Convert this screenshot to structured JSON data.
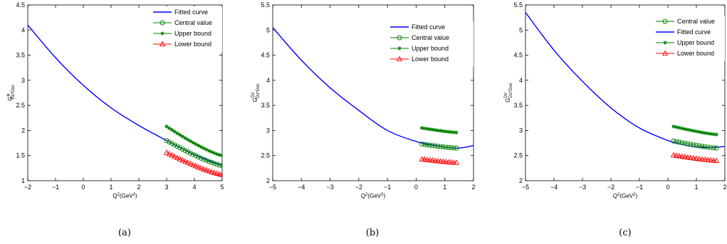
{
  "chart_data": [
    {
      "type": "line",
      "caption": "(a)",
      "xlabel_main": "Q",
      "xlabel_sup": "2",
      "xlabel_rest": "(GeV",
      "xlabel_sup2": "2",
      "xlabel_end": ")",
      "ylabel_main": "G",
      "ylabel_sup": "φ",
      "ylabel_sub": "Ds*Dso",
      "xlim": [
        -2,
        5
      ],
      "ylim": [
        1,
        4.5
      ],
      "xticks": [
        "−2",
        "−1",
        "0",
        "1",
        "2",
        "3",
        "4",
        "5"
      ],
      "yticks": [
        "1",
        "1.5",
        "2",
        "2.5",
        "3",
        "3.5",
        "4",
        "4.5"
      ],
      "legend": [
        "Fitted curve",
        "Central value",
        "Upper bound",
        "Lower bound"
      ],
      "series": [
        {
          "name": "Fitted curve",
          "color": "#0000ff",
          "marker": "none",
          "curve": {
            "x": [
              -2,
              -1,
              0,
              1,
              2,
              3,
              4,
              5
            ],
            "y": [
              4.1,
              3.45,
              2.9,
              2.45,
              2.1,
              1.8,
              1.52,
              1.3
            ]
          }
        },
        {
          "name": "Central value",
          "color": "#008000",
          "marker": "circle",
          "points": {
            "x0": 3.0,
            "x1": 5.0,
            "n": 22,
            "y0": 1.8,
            "y1": 1.3
          }
        },
        {
          "name": "Upper bound",
          "color": "#008000",
          "marker": "star",
          "points": {
            "x0": 3.0,
            "x1": 5.0,
            "n": 22,
            "y0": 2.08,
            "y1": 1.5
          }
        },
        {
          "name": "Lower bound",
          "color": "#ff0000",
          "marker": "triangle",
          "points": {
            "x0": 3.0,
            "x1": 5.0,
            "n": 22,
            "y0": 1.56,
            "y1": 1.12
          }
        }
      ]
    },
    {
      "type": "line",
      "caption": "(b)",
      "xlabel_main": "Q",
      "xlabel_sup": "2",
      "xlabel_rest": "(GeV",
      "xlabel_sup2": "2",
      "xlabel_end": ")",
      "ylabel_main": "G",
      "ylabel_sup": "Ds",
      "ylabel_sub": "Ds*Dso",
      "xlim": [
        -5,
        2
      ],
      "ylim": [
        2,
        5.5
      ],
      "xticks": [
        "−5",
        "−4",
        "−3",
        "−2",
        "−1",
        "0",
        "1",
        "2"
      ],
      "yticks": [
        "2",
        "2.5",
        "3",
        "3.5",
        "4",
        "4.5",
        "5",
        "5.5"
      ],
      "legend": [
        "Fitted curve",
        "Central value",
        "Upper bound",
        "Lower bound"
      ],
      "series": [
        {
          "name": "Fitted curve",
          "color": "#0000ff",
          "marker": "none",
          "curve": {
            "x": [
              -5,
              -4,
              -3,
              -2,
              -1,
              0,
              0.5,
              1,
              1.5,
              2
            ],
            "y": [
              5.05,
              4.4,
              3.85,
              3.4,
              3.0,
              2.78,
              2.72,
              2.67,
              2.65,
              2.7
            ]
          }
        },
        {
          "name": "Central value",
          "color": "#008000",
          "marker": "circle",
          "points": {
            "x0": 0.2,
            "x1": 1.4,
            "n": 14,
            "y0": 2.73,
            "y1": 2.65
          }
        },
        {
          "name": "Upper bound",
          "color": "#008000",
          "marker": "star",
          "points": {
            "x0": 0.2,
            "x1": 1.4,
            "n": 14,
            "y0": 3.05,
            "y1": 2.96
          }
        },
        {
          "name": "Lower bound",
          "color": "#ff0000",
          "marker": "triangle",
          "points": {
            "x0": 0.2,
            "x1": 1.4,
            "n": 14,
            "y0": 2.43,
            "y1": 2.36
          }
        }
      ]
    },
    {
      "type": "line",
      "caption": "(c)",
      "xlabel_main": "Q",
      "xlabel_sup": "2",
      "xlabel_rest": "(GeV",
      "xlabel_sup2": "2",
      "xlabel_end": ")",
      "ylabel_main": "G",
      "ylabel_sup": "Ds'",
      "ylabel_sub": "Ds*Dso",
      "xlim": [
        -5,
        2
      ],
      "ylim": [
        2,
        5.5
      ],
      "xticks": [
        "−5",
        "−4",
        "−3",
        "−2",
        "−1",
        "0",
        "1",
        "2"
      ],
      "yticks": [
        "2",
        "2.5",
        "3",
        "3.5",
        "4",
        "4.5",
        "5",
        "5.5"
      ],
      "legend": [
        "Central value",
        "Fitted curve",
        "Upper bound",
        "Lower bound"
      ],
      "series": [
        {
          "name": "Fitted curve",
          "color": "#0000ff",
          "marker": "none",
          "curve": {
            "x": [
              -5,
              -4,
              -3,
              -2,
              -1,
              0,
              0.5,
              1,
              1.5,
              2
            ],
            "y": [
              5.35,
              4.6,
              3.98,
              3.45,
              3.05,
              2.8,
              2.72,
              2.67,
              2.66,
              2.68
            ]
          }
        },
        {
          "name": "Central value",
          "color": "#008000",
          "marker": "circle",
          "points": {
            "x0": 0.2,
            "x1": 1.7,
            "n": 16,
            "y0": 2.79,
            "y1": 2.65
          }
        },
        {
          "name": "Upper bound",
          "color": "#008000",
          "marker": "star",
          "points": {
            "x0": 0.2,
            "x1": 1.7,
            "n": 16,
            "y0": 3.08,
            "y1": 2.92
          }
        },
        {
          "name": "Lower bound",
          "color": "#ff0000",
          "marker": "triangle",
          "points": {
            "x0": 0.2,
            "x1": 1.7,
            "n": 16,
            "y0": 2.51,
            "y1": 2.4
          }
        }
      ]
    }
  ]
}
